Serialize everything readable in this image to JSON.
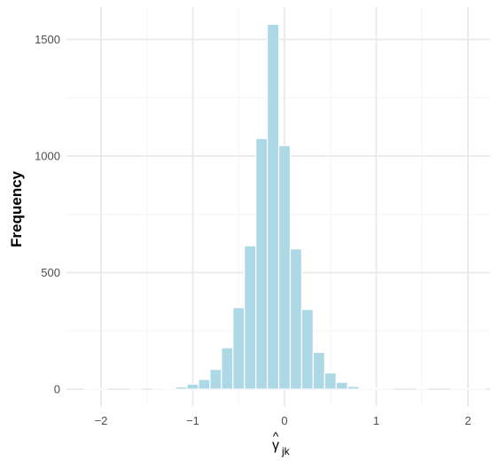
{
  "chart_data": {
    "type": "bar",
    "title": "",
    "xlabel_main": "γ",
    "xlabel_hat": "^",
    "xlabel_sub": "jk",
    "ylabel": "Frequency",
    "xlim": [
      -2.3,
      2.3
    ],
    "ylim": [
      0,
      1620
    ],
    "x_ticks": [
      -2,
      -1,
      0,
      1,
      2
    ],
    "x_tick_labels": [
      "−2",
      "−1",
      "0",
      "1",
      "2"
    ],
    "y_ticks": [
      0,
      500,
      1000,
      1500
    ],
    "y_tick_labels": [
      "0",
      "500",
      "1000",
      "1500"
    ],
    "bin_width": 0.125,
    "bins": [
      {
        "center": -2.125,
        "value": 2
      },
      {
        "center": -2.0,
        "value": 1
      },
      {
        "center": -1.875,
        "value": 0
      },
      {
        "center": -1.75,
        "value": 0
      },
      {
        "center": -1.625,
        "value": 1
      },
      {
        "center": -1.5,
        "value": 0
      },
      {
        "center": -1.375,
        "value": 1
      },
      {
        "center": -1.25,
        "value": 3
      },
      {
        "center": -1.125,
        "value": 10
      },
      {
        "center": -1.0,
        "value": 22
      },
      {
        "center": -0.875,
        "value": 42
      },
      {
        "center": -0.75,
        "value": 85
      },
      {
        "center": -0.625,
        "value": 178
      },
      {
        "center": -0.5,
        "value": 350
      },
      {
        "center": -0.375,
        "value": 615
      },
      {
        "center": -0.25,
        "value": 1075
      },
      {
        "center": -0.125,
        "value": 1565
      },
      {
        "center": 0.0,
        "value": 1045
      },
      {
        "center": 0.125,
        "value": 602
      },
      {
        "center": 0.25,
        "value": 342
      },
      {
        "center": 0.375,
        "value": 158
      },
      {
        "center": 0.5,
        "value": 70
      },
      {
        "center": 0.625,
        "value": 30
      },
      {
        "center": 0.75,
        "value": 12
      },
      {
        "center": 0.875,
        "value": 4
      },
      {
        "center": 1.0,
        "value": 2
      },
      {
        "center": 1.125,
        "value": 1
      },
      {
        "center": 1.25,
        "value": 0
      },
      {
        "center": 1.375,
        "value": 0
      },
      {
        "center": 1.5,
        "value": 1
      },
      {
        "center": 1.625,
        "value": 0
      },
      {
        "center": 1.75,
        "value": 0
      },
      {
        "center": 1.875,
        "value": 1
      },
      {
        "center": 2.0,
        "value": 2
      },
      {
        "center": 2.125,
        "value": 1
      }
    ],
    "grid": true,
    "legend": "none"
  },
  "colors": {
    "bar_fill": "#add8e6",
    "bar_stroke": "#ffffff",
    "grid_major": "#ebebeb",
    "grid_minor": "#f5f5f5",
    "tick_text": "#4d4d4d",
    "title_text": "#000000"
  }
}
